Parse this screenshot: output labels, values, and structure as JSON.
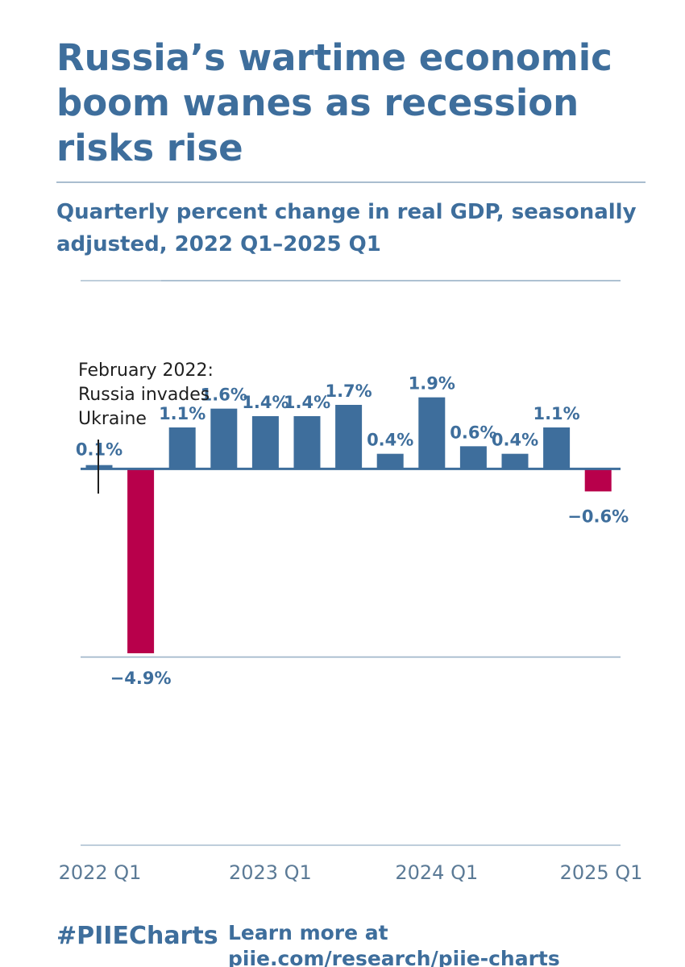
{
  "header": {
    "title": "Russia’s wartime economic boom wanes as recession risks rise",
    "subtitle": "Quarterly percent change in real GDP, seasonally adjusted, 2022 Q1–2025 Q1"
  },
  "chart_data": {
    "type": "bar",
    "title": "Russia’s wartime economic boom wanes as recession risks rise",
    "subtitle": "Quarterly percent change in real GDP, seasonally adjusted, 2022 Q1–2025 Q1",
    "categories": [
      "2022 Q1",
      "2022 Q2",
      "2022 Q3",
      "2022 Q4",
      "2023 Q1",
      "2023 Q2",
      "2023 Q3",
      "2023 Q4",
      "2024 Q1",
      "2024 Q2",
      "2024 Q3",
      "2024 Q4",
      "2025 Q1"
    ],
    "values": [
      0.1,
      -4.9,
      1.1,
      1.6,
      1.4,
      1.4,
      1.7,
      0.4,
      1.9,
      0.6,
      0.4,
      1.1,
      -0.6
    ],
    "value_labels": [
      "0.1%",
      "−4.9%",
      "1.1%",
      "1.6%",
      "1.4%",
      "1.4%",
      "1.7%",
      "0.4%",
      "1.9%",
      "0.6%",
      "0.4%",
      "1.1%",
      "−0.6%"
    ],
    "x_tick_labels": [
      "2022 Q1",
      "2023 Q1",
      "2024 Q1",
      "2025 Q1"
    ],
    "x_tick_indices": [
      0,
      4,
      8,
      12
    ],
    "ylim": [
      -10,
      5
    ],
    "gridlines": [
      5,
      0,
      -5
    ],
    "annotation": {
      "lines": [
        "February 2022:",
        "Russia invades",
        "Ukraine"
      ],
      "category_index": 0
    },
    "colors": {
      "positive": "#3e6e9c",
      "negative": "#b8004b",
      "text": "#3e6e9c",
      "grid": "#a9bdcf",
      "annotation": "#1f1f1f",
      "axis_labels": "#5b7a96"
    }
  },
  "footer": {
    "tag": "#PIIECharts",
    "learn_more_line1": "Learn more at",
    "learn_more_line2": "piie.com/research/piie-charts"
  }
}
